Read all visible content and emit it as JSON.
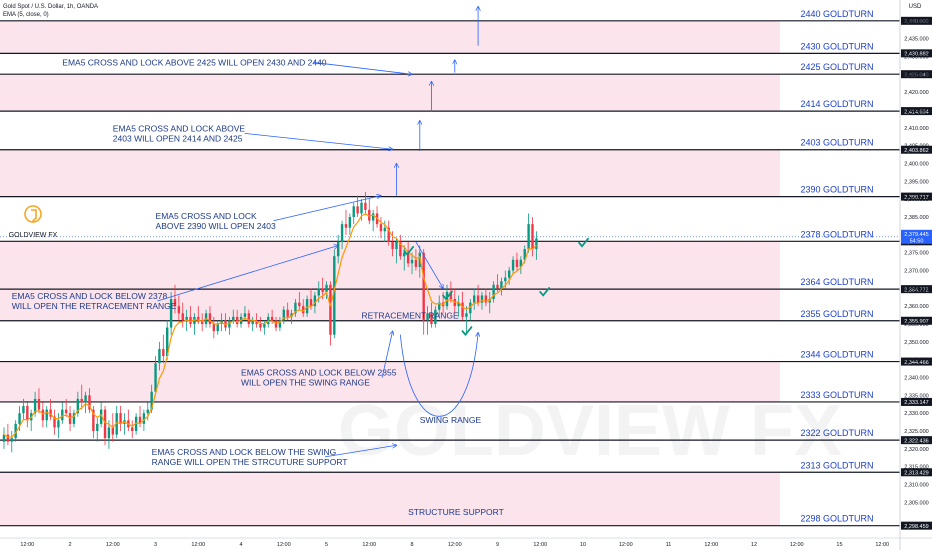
{
  "header": {
    "symbol": "Gold Spot / U.S. Dollar, 1h, OANDA",
    "indicator": "EMA (5, close, 0)",
    "currency": "USD"
  },
  "logo": {
    "letter": "G",
    "text": "GOLDVIEW FX"
  },
  "watermark": "GOLDVIEW FX",
  "colors": {
    "up": "#089981",
    "down": "#f23645",
    "ema": "#ff9800",
    "level_line": "#131722",
    "band": "#fce4ec",
    "annotation": "#2962ff",
    "label_text": "#1e40c8",
    "last_price_bg": "#2962ff"
  },
  "chart_data": {
    "type": "candlestick",
    "ylim": [
      2295,
      2445
    ],
    "y_ticks": [
      2305,
      2310,
      2315,
      2320,
      2325,
      2330,
      2335,
      2340,
      2345,
      2350,
      2355,
      2360,
      2365,
      2370,
      2375,
      2380,
      2385,
      2390,
      2395,
      2400,
      2405,
      2410,
      2415,
      2420,
      2425,
      2430,
      2435,
      2440
    ],
    "y_tick_labels": [
      "2,305.000",
      "2,310.000",
      "2,315.000",
      "2,320.000",
      "2,325.000",
      "2,330.000",
      "2,335.000",
      "2,340.000",
      "2,345.000",
      "2,350.000",
      "2,355.000",
      "2,360.000",
      "2,365.000",
      "2,370.000",
      "2,375.000",
      "2,380.000",
      "2,385.000",
      "2,390.000",
      "2,395.000",
      "2,400.000",
      "2,405.000",
      "2,410.000",
      "2,415.000",
      "2,420.000",
      "2,425.000",
      "2,430.000",
      "2,435.000",
      "2,440.000"
    ],
    "x_ticks": [
      {
        "label": "12:00",
        "bar": 6
      },
      {
        "label": "2",
        "bar": 17
      },
      {
        "label": "12:00",
        "bar": 28
      },
      {
        "label": "3",
        "bar": 39
      },
      {
        "label": "12:00",
        "bar": 50
      },
      {
        "label": "4",
        "bar": 61
      },
      {
        "label": "12:00",
        "bar": 72
      },
      {
        "label": "5",
        "bar": 83
      },
      {
        "label": "12:00",
        "bar": 94
      },
      {
        "label": "8",
        "bar": 105
      },
      {
        "label": "12:00",
        "bar": 116
      },
      {
        "label": "9",
        "bar": 127
      },
      {
        "label": "12:00",
        "bar": 138
      },
      {
        "label": "10",
        "bar": 149
      },
      {
        "label": "12:00",
        "bar": 160
      },
      {
        "label": "11",
        "bar": 171
      },
      {
        "label": "12:00",
        "bar": 182
      },
      {
        "label": "12",
        "bar": 193
      },
      {
        "label": "12:00",
        "bar": 204
      },
      {
        "label": "15",
        "bar": 215
      },
      {
        "label": "12:00",
        "bar": 226
      }
    ],
    "x_range": [
      0,
      228
    ],
    "levels": [
      {
        "value": 2440.0,
        "label": "2440 GOLDTURN",
        "price_tag": "2,440.000"
      },
      {
        "value": 2430.882,
        "label": "2430 GOLDTURN",
        "price_tag": "2,430.882"
      },
      {
        "value": 2425.04,
        "label": "2425 GOLDTURN",
        "price_tag": "2,425.040"
      },
      {
        "value": 2414.694,
        "label": "2414 GOLDTURN",
        "price_tag": "2,414.694"
      },
      {
        "value": 2403.862,
        "label": "2403 GOLDTURN",
        "price_tag": "2,403.862"
      },
      {
        "value": 2390.717,
        "label": "2390 GOLDTURN",
        "price_tag": "2,390.717"
      },
      {
        "value": 2378.18,
        "label": "2378 GOLDTURN",
        "price_tag": "2,378.180"
      },
      {
        "value": 2364.772,
        "label": "2364 GOLDTURN",
        "price_tag": "2,364.772"
      },
      {
        "value": 2355.907,
        "label": "2355 GOLDTURN",
        "price_tag": "2,355.907"
      },
      {
        "value": 2344.466,
        "label": "2344 GOLDTURN",
        "price_tag": "2,344.466"
      },
      {
        "value": 2333.147,
        "label": "2333 GOLDTURN",
        "price_tag": "2,333.147"
      },
      {
        "value": 2322.436,
        "label": "2322 GOLDTURN",
        "price_tag": "2,322.436"
      },
      {
        "value": 2313.429,
        "label": "2313 GOLDTURN",
        "price_tag": "2,313.429"
      },
      {
        "value": 2298.459,
        "label": "2298 GOLDTURN",
        "price_tag": "2,298.459"
      }
    ],
    "bands": [
      [
        2430.882,
        2440.0
      ],
      [
        2414.694,
        2425.04
      ],
      [
        2390.717,
        2403.862
      ],
      [
        2355.907,
        2378.18
      ],
      [
        2333.147,
        2344.466
      ],
      [
        2298.459,
        2313.429
      ]
    ],
    "last_price": {
      "value": 2379.445,
      "label": "2,379.445",
      "countdown": "54:50"
    },
    "annotations": [
      {
        "lines": [
          "EMA5 CROSS AND LOCK ABOVE 2425 WILL OPEN 2430 AND 2440"
        ],
        "anchor": "start",
        "price": 2427.5,
        "bar": 15,
        "arrow_to": {
          "bar": 105,
          "price": 2425
        }
      },
      {
        "lines": [
          "EMA5 CROSS AND LOCK ABOVE",
          "2403 WILL OPEN 2414 AND 2425"
        ],
        "anchor": "start",
        "price": 2409,
        "bar": 28,
        "arrow_to": {
          "bar": 100,
          "price": 2404
        }
      },
      {
        "lines": [
          "EMA5 CROSS AND LOCK",
          "ABOVE 2390 WILL OPEN 2403"
        ],
        "anchor": "start",
        "price": 2384.5,
        "bar": 39,
        "arrow_to": {
          "bar": 97,
          "price": 2391
        }
      },
      {
        "lines": [
          "EMA5 CROSS AND LOCK BELOW 2378",
          "WILL OPEN THE RETRACEMENT RANGE"
        ],
        "anchor": "start",
        "price": 2362,
        "bar": 2,
        "arrow_to": {
          "bar": 86,
          "price": 2377
        }
      },
      {
        "lines": [
          "EMA5 CROSS AND LOCK BELOW 2355",
          "WILL OPEN THE SWING RANGE"
        ],
        "anchor": "start",
        "price": 2340.5,
        "bar": 61,
        "arrow_to": {
          "bar": 100,
          "price": 2353
        }
      },
      {
        "lines": [
          "EMA5 CROSS AND LOCK BELOW THE SWING",
          "RANGE WILL OPEN THE STRCUTURE SUPPORT"
        ],
        "anchor": "start",
        "price": 2318.3,
        "bar": 38,
        "arrow_to": {
          "bar": 101,
          "price": 2321
        }
      },
      {
        "lines": [
          "RETRACEMENT RANGE"
        ],
        "anchor": "start",
        "price": 2356.5,
        "bar": 92,
        "arrow_to": null
      },
      {
        "lines": [
          "SWING RANGE"
        ],
        "anchor": "start",
        "price": 2327.3,
        "bar": 107,
        "arrow_to": null
      },
      {
        "lines": [
          "STRUCTURE SUPPORT"
        ],
        "anchor": "start",
        "price": 2301.5,
        "bar": 104,
        "arrow_to": null
      }
    ],
    "vertical_arrows": [
      {
        "bar": 101,
        "from": 2391,
        "to": 2400
      },
      {
        "bar": 107,
        "from": 2403.5,
        "to": 2412
      },
      {
        "bar": 110,
        "from": 2414.5,
        "to": 2423
      },
      {
        "bar": 116,
        "from": 2425.5,
        "to": 2429
      },
      {
        "bar": 122,
        "from": 2433,
        "to": 2444
      }
    ],
    "checkmarks": [
      {
        "bar": 104,
        "price": 2375.5
      },
      {
        "bar": 114,
        "price": 2363
      },
      {
        "bar": 119,
        "price": 2353
      },
      {
        "bar": 139,
        "price": 2364
      },
      {
        "bar": 149,
        "price": 2377.8
      }
    ],
    "candles": [
      [
        2322,
        2326,
        2320,
        2324
      ],
      [
        2324,
        2327,
        2321,
        2322
      ],
      [
        2322,
        2325,
        2319,
        2323
      ],
      [
        2323,
        2328,
        2322,
        2327
      ],
      [
        2327,
        2332,
        2325,
        2330
      ],
      [
        2330,
        2334,
        2328,
        2332
      ],
      [
        2332,
        2333,
        2326,
        2328
      ],
      [
        2328,
        2331,
        2325,
        2330
      ],
      [
        2330,
        2336,
        2329,
        2334
      ],
      [
        2334,
        2337,
        2330,
        2331
      ],
      [
        2331,
        2333,
        2326,
        2328
      ],
      [
        2328,
        2332,
        2326,
        2331
      ],
      [
        2331,
        2334,
        2328,
        2329
      ],
      [
        2329,
        2331,
        2324,
        2326
      ],
      [
        2326,
        2330,
        2323,
        2328
      ],
      [
        2328,
        2333,
        2327,
        2331
      ],
      [
        2331,
        2334,
        2329,
        2330
      ],
      [
        2330,
        2332,
        2325,
        2327
      ],
      [
        2327,
        2331,
        2326,
        2330
      ],
      [
        2330,
        2336,
        2329,
        2334
      ],
      [
        2334,
        2338,
        2331,
        2333
      ],
      [
        2333,
        2336,
        2330,
        2335
      ],
      [
        2335,
        2337,
        2330,
        2331
      ],
      [
        2331,
        2332,
        2323,
        2325
      ],
      [
        2325,
        2329,
        2322,
        2327
      ],
      [
        2327,
        2333,
        2326,
        2331
      ],
      [
        2331,
        2332,
        2321,
        2323
      ],
      [
        2323,
        2328,
        2320,
        2326
      ],
      [
        2326,
        2330,
        2322,
        2324
      ],
      [
        2324,
        2332,
        2323,
        2330
      ],
      [
        2330,
        2332,
        2325,
        2327
      ],
      [
        2327,
        2330,
        2324,
        2328
      ],
      [
        2328,
        2331,
        2325,
        2326
      ],
      [
        2326,
        2328,
        2323,
        2325
      ],
      [
        2325,
        2330,
        2324,
        2329
      ],
      [
        2329,
        2332,
        2326,
        2327
      ],
      [
        2327,
        2331,
        2325,
        2330
      ],
      [
        2330,
        2333,
        2328,
        2331
      ],
      [
        2331,
        2338,
        2330,
        2336
      ],
      [
        2336,
        2346,
        2335,
        2344
      ],
      [
        2344,
        2350,
        2342,
        2348
      ],
      [
        2348,
        2352,
        2344,
        2346
      ],
      [
        2346,
        2356,
        2345,
        2354
      ],
      [
        2354,
        2364,
        2352,
        2362
      ],
      [
        2362,
        2366,
        2358,
        2360
      ],
      [
        2360,
        2363,
        2356,
        2358
      ],
      [
        2358,
        2361,
        2354,
        2356
      ],
      [
        2356,
        2359,
        2353,
        2357
      ],
      [
        2357,
        2360,
        2354,
        2355
      ],
      [
        2355,
        2358,
        2352,
        2357
      ],
      [
        2357,
        2360,
        2355,
        2356
      ],
      [
        2356,
        2358,
        2353,
        2355
      ],
      [
        2355,
        2359,
        2354,
        2358
      ],
      [
        2358,
        2360,
        2354,
        2355
      ],
      [
        2355,
        2357,
        2351,
        2353
      ],
      [
        2353,
        2356,
        2352,
        2355
      ],
      [
        2355,
        2358,
        2353,
        2356
      ],
      [
        2356,
        2358,
        2353,
        2354
      ],
      [
        2354,
        2357,
        2352,
        2356
      ],
      [
        2356,
        2359,
        2355,
        2357
      ],
      [
        2357,
        2359,
        2354,
        2355
      ],
      [
        2355,
        2358,
        2354,
        2357
      ],
      [
        2357,
        2360,
        2356,
        2358
      ],
      [
        2358,
        2359,
        2354,
        2355
      ],
      [
        2355,
        2357,
        2353,
        2356
      ],
      [
        2356,
        2358,
        2354,
        2355
      ],
      [
        2355,
        2357,
        2353,
        2354
      ],
      [
        2354,
        2356,
        2352,
        2355
      ],
      [
        2355,
        2358,
        2354,
        2357
      ],
      [
        2357,
        2359,
        2355,
        2356
      ],
      [
        2356,
        2357,
        2353,
        2354
      ],
      [
        2354,
        2357,
        2353,
        2356
      ],
      [
        2356,
        2360,
        2355,
        2359
      ],
      [
        2359,
        2361,
        2356,
        2357
      ],
      [
        2357,
        2359,
        2355,
        2358
      ],
      [
        2358,
        2362,
        2357,
        2361
      ],
      [
        2361,
        2364,
        2359,
        2360
      ],
      [
        2360,
        2362,
        2357,
        2358
      ],
      [
        2358,
        2363,
        2357,
        2362
      ],
      [
        2362,
        2365,
        2359,
        2360
      ],
      [
        2360,
        2364,
        2358,
        2363
      ],
      [
        2363,
        2367,
        2361,
        2365
      ],
      [
        2365,
        2368,
        2362,
        2364
      ],
      [
        2364,
        2367,
        2362,
        2366
      ],
      [
        2366,
        2367,
        2349,
        2352
      ],
      [
        2352,
        2376,
        2351,
        2374
      ],
      [
        2374,
        2380,
        2372,
        2378
      ],
      [
        2378,
        2384,
        2376,
        2383
      ],
      [
        2383,
        2387,
        2380,
        2382
      ],
      [
        2382,
        2386,
        2380,
        2385
      ],
      [
        2385,
        2389,
        2383,
        2388
      ],
      [
        2388,
        2391,
        2385,
        2386
      ],
      [
        2386,
        2390,
        2384,
        2389
      ],
      [
        2389,
        2392,
        2386,
        2387
      ],
      [
        2387,
        2390,
        2383,
        2384
      ],
      [
        2384,
        2387,
        2381,
        2386
      ],
      [
        2386,
        2388,
        2382,
        2383
      ],
      [
        2383,
        2385,
        2379,
        2381
      ],
      [
        2381,
        2384,
        2378,
        2382
      ],
      [
        2382,
        2384,
        2377,
        2378
      ],
      [
        2378,
        2381,
        2374,
        2376
      ],
      [
        2376,
        2379,
        2372,
        2378
      ],
      [
        2378,
        2380,
        2373,
        2374
      ],
      [
        2374,
        2377,
        2370,
        2375
      ],
      [
        2375,
        2378,
        2371,
        2372
      ],
      [
        2372,
        2375,
        2369,
        2373
      ],
      [
        2373,
        2376,
        2370,
        2371
      ],
      [
        2371,
        2377,
        2368,
        2375
      ],
      [
        2375,
        2376,
        2352,
        2356
      ],
      [
        2356,
        2360,
        2352,
        2358
      ],
      [
        2358,
        2361,
        2354,
        2355
      ],
      [
        2355,
        2360,
        2354,
        2359
      ],
      [
        2359,
        2363,
        2357,
        2361
      ],
      [
        2361,
        2364,
        2358,
        2360
      ],
      [
        2360,
        2366,
        2359,
        2364
      ],
      [
        2364,
        2367,
        2361,
        2362
      ],
      [
        2362,
        2365,
        2358,
        2360
      ],
      [
        2360,
        2363,
        2357,
        2361
      ],
      [
        2361,
        2364,
        2356,
        2357
      ],
      [
        2357,
        2360,
        2352,
        2358
      ],
      [
        2358,
        2362,
        2356,
        2361
      ],
      [
        2361,
        2365,
        2359,
        2363
      ],
      [
        2363,
        2366,
        2360,
        2361
      ],
      [
        2361,
        2364,
        2359,
        2363
      ],
      [
        2363,
        2365,
        2360,
        2361
      ],
      [
        2361,
        2364,
        2358,
        2362
      ],
      [
        2362,
        2367,
        2361,
        2366
      ],
      [
        2366,
        2369,
        2364,
        2365
      ],
      [
        2365,
        2368,
        2363,
        2367
      ],
      [
        2367,
        2370,
        2365,
        2368
      ],
      [
        2368,
        2371,
        2366,
        2370
      ],
      [
        2370,
        2374,
        2369,
        2373
      ],
      [
        2373,
        2375,
        2370,
        2371
      ],
      [
        2371,
        2374,
        2369,
        2373
      ],
      [
        2373,
        2377,
        2372,
        2376
      ],
      [
        2376,
        2386,
        2375,
        2383
      ],
      [
        2383,
        2385,
        2374,
        2376
      ],
      [
        2376,
        2381,
        2373,
        2379
      ]
    ]
  }
}
